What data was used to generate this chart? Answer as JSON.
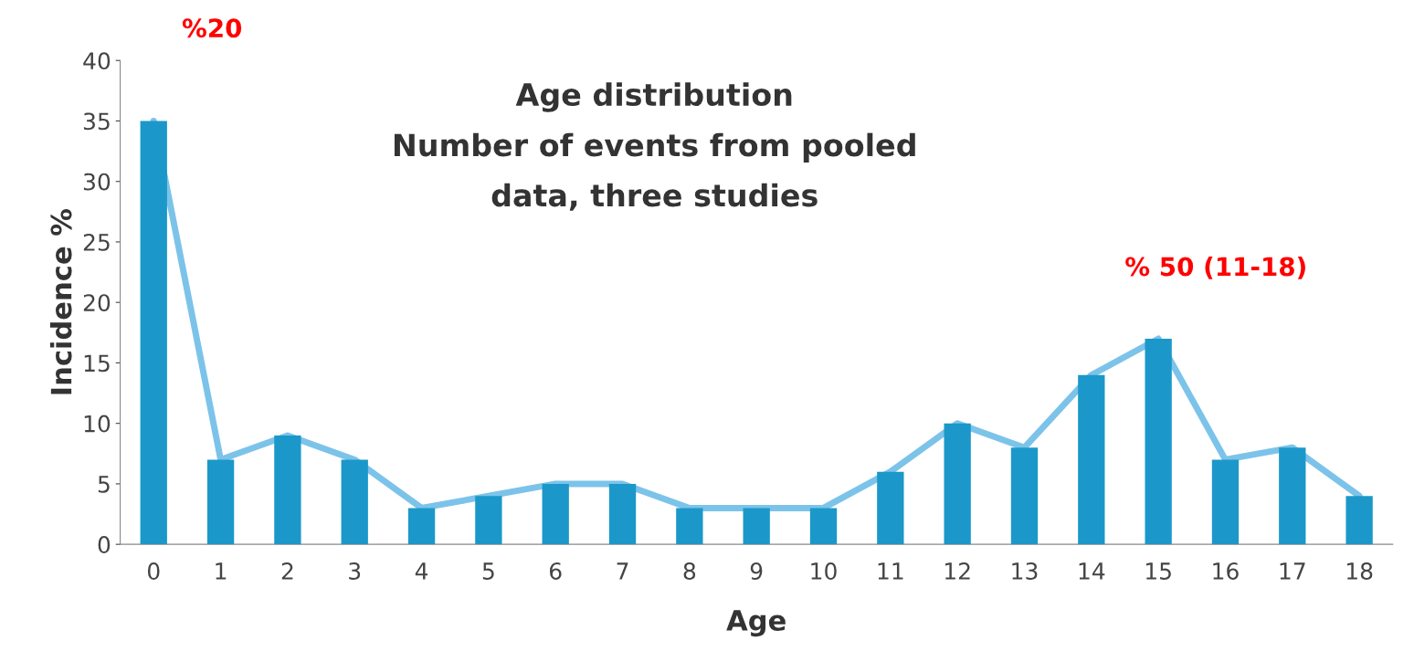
{
  "chart_data": {
    "type": "bar",
    "title": "Age distribution\nNumber of events from pooled\ndata, three studies",
    "xlabel": "Age",
    "ylabel": "Incidence %",
    "categories": [
      "0",
      "1",
      "2",
      "3",
      "4",
      "5",
      "6",
      "7",
      "8",
      "9",
      "10",
      "11",
      "12",
      "13",
      "14",
      "15",
      "16",
      "17",
      "18"
    ],
    "series": [
      {
        "color": "#1b98c9",
        "values": [
          35,
          7,
          9,
          7,
          3,
          4,
          5,
          5,
          3,
          3,
          3,
          6,
          10,
          8,
          14,
          17,
          7,
          8,
          4
        ]
      },
      {
        "type": "line",
        "color": "#7cc3ea",
        "values": [
          35,
          7,
          9,
          7,
          3,
          4,
          5,
          5,
          3,
          3,
          3,
          6,
          10,
          8,
          14,
          17,
          7,
          8,
          4
        ]
      }
    ],
    "ylim": [
      0,
      40
    ],
    "yticks": [
      0,
      5,
      10,
      15,
      20,
      25,
      30,
      35,
      40
    ],
    "grid": false,
    "legend": false,
    "annotations": [
      "%20",
      "% 50 (11-18)"
    ]
  }
}
